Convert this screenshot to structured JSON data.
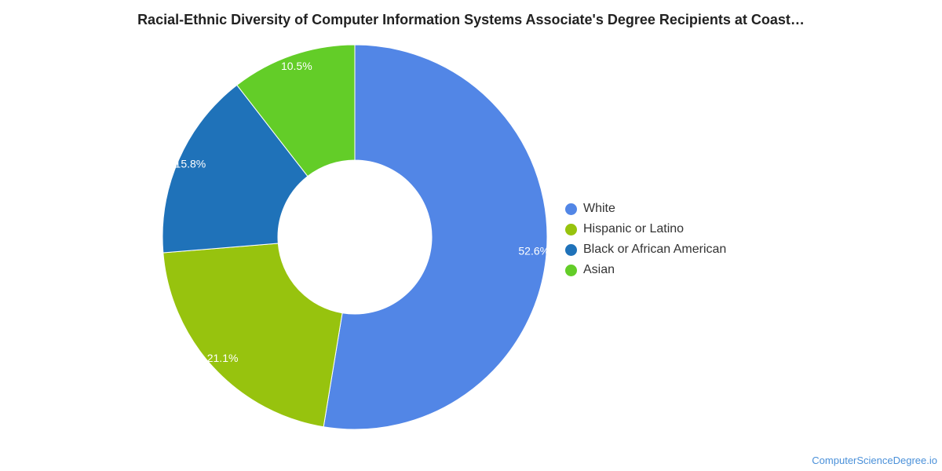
{
  "chart_data": {
    "type": "pie",
    "title": "Racial-Ethnic Diversity of Computer Information Systems Associate's Degree Recipients at Coast…",
    "donut": true,
    "legend_position": "right",
    "slices": [
      {
        "name": "White",
        "value": 52.6,
        "label": "52.6%",
        "color": "#5286e6"
      },
      {
        "name": "Hispanic or Latino",
        "value": 21.1,
        "label": "21.1%",
        "color": "#97c30e"
      },
      {
        "name": "Black or African American",
        "value": 15.8,
        "label": "15.8%",
        "color": "#1f72b9"
      },
      {
        "name": "Asian",
        "value": 10.5,
        "label": "10.5%",
        "color": "#63cd28"
      }
    ]
  },
  "credit": "ComputerScienceDegree.io"
}
